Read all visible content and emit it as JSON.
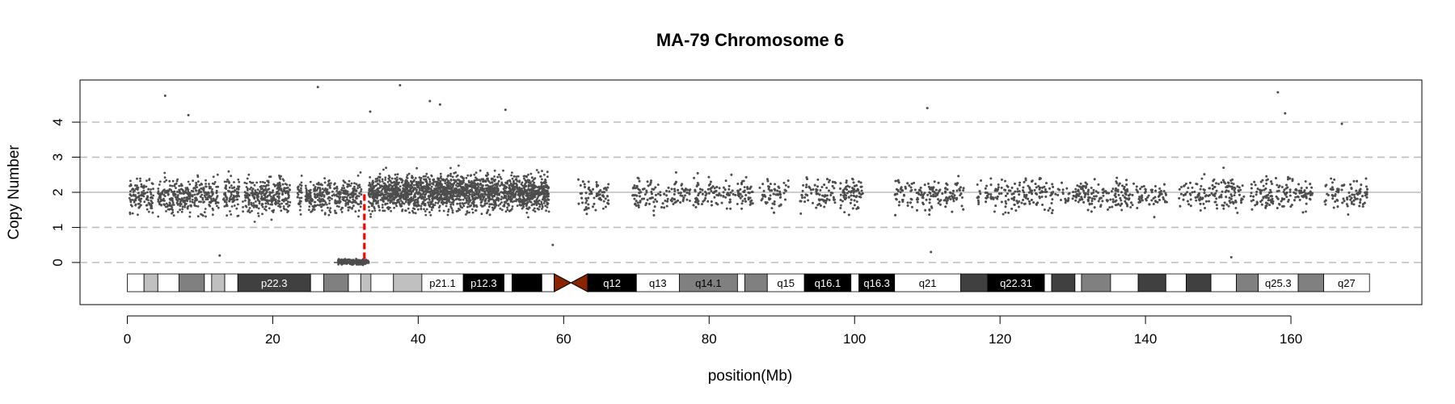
{
  "chart_data": {
    "type": "scatter",
    "title": "MA-79  Chromosome 6",
    "xlabel": "position(Mb)",
    "ylabel": "Copy Number",
    "xlim": [
      -6.5,
      178
    ],
    "ylim": [
      -1.2,
      5.2
    ],
    "x_ticks": [
      0,
      20,
      40,
      60,
      80,
      100,
      120,
      140,
      160
    ],
    "y_ticks": [
      0,
      1,
      2,
      3,
      4
    ],
    "dashed_gridlines_y": [
      0,
      1,
      3,
      4
    ],
    "solid_gridline_y": 2,
    "point_color": "#4d4d4d",
    "marker": {
      "x": 32.6,
      "y_from": 0.1,
      "y_to": 2.0,
      "color": "#ff0000",
      "style": "dashed"
    },
    "segments": [
      {
        "x0": 0.3,
        "x1": 32.2,
        "y": 1.9,
        "spread": 0.55,
        "density": 42
      },
      {
        "x0": 29.0,
        "x1": 33.2,
        "y": 0.02,
        "spread": 0.08,
        "density": 70
      },
      {
        "x0": 33.2,
        "x1": 58.0,
        "y": 2.0,
        "spread": 0.55,
        "density": 80
      },
      {
        "x0": 62.0,
        "x1": 170.5,
        "y": 1.95,
        "spread": 0.5,
        "density": 42
      }
    ],
    "gaps": [
      [
        3.6,
        4.2
      ],
      [
        12.6,
        13.2
      ],
      [
        15.4,
        15.9
      ],
      [
        22.4,
        23.4
      ],
      [
        24.0,
        24.5
      ],
      [
        58.0,
        62.0
      ],
      [
        66.2,
        69.4
      ],
      [
        77.4,
        77.8
      ],
      [
        86.0,
        86.6
      ],
      [
        91.0,
        92.5
      ],
      [
        97.4,
        98.0
      ],
      [
        101.2,
        105.4
      ],
      [
        115.0,
        116.6
      ],
      [
        143.0,
        144.6
      ],
      [
        153.6,
        154.3
      ],
      [
        163.0,
        164.6
      ]
    ],
    "outliers": [
      [
        5.2,
        4.75
      ],
      [
        8.4,
        4.2
      ],
      [
        26.2,
        5.0
      ],
      [
        33.4,
        4.3
      ],
      [
        37.5,
        5.05
      ],
      [
        41.6,
        4.6
      ],
      [
        43.0,
        4.5
      ],
      [
        52.0,
        4.35
      ],
      [
        110.0,
        4.4
      ],
      [
        158.2,
        4.85
      ],
      [
        159.2,
        4.25
      ],
      [
        167.0,
        3.95
      ],
      [
        12.7,
        0.2
      ],
      [
        110.5,
        0.3
      ],
      [
        151.8,
        0.15
      ],
      [
        58.5,
        0.5
      ]
    ],
    "ideogram": {
      "bands": [
        {
          "start": 0.0,
          "end": 2.3,
          "stain": "gneg",
          "label": ""
        },
        {
          "start": 2.3,
          "end": 4.2,
          "stain": "gpos25",
          "label": ""
        },
        {
          "start": 4.2,
          "end": 7.1,
          "stain": "gneg",
          "label": ""
        },
        {
          "start": 7.1,
          "end": 10.6,
          "stain": "gpos50",
          "label": ""
        },
        {
          "start": 10.6,
          "end": 11.6,
          "stain": "gneg",
          "label": ""
        },
        {
          "start": 11.6,
          "end": 13.4,
          "stain": "gpos25",
          "label": ""
        },
        {
          "start": 13.4,
          "end": 15.2,
          "stain": "gneg",
          "label": ""
        },
        {
          "start": 15.2,
          "end": 25.2,
          "stain": "gpos75",
          "label": "p22.3"
        },
        {
          "start": 25.2,
          "end": 27.0,
          "stain": "gneg",
          "label": ""
        },
        {
          "start": 27.0,
          "end": 30.4,
          "stain": "gpos50",
          "label": ""
        },
        {
          "start": 30.4,
          "end": 32.1,
          "stain": "gneg",
          "label": ""
        },
        {
          "start": 32.1,
          "end": 33.5,
          "stain": "gpos25",
          "label": ""
        },
        {
          "start": 33.5,
          "end": 36.6,
          "stain": "gneg",
          "label": ""
        },
        {
          "start": 36.6,
          "end": 40.5,
          "stain": "gpos25",
          "label": ""
        },
        {
          "start": 40.5,
          "end": 46.2,
          "stain": "gneg",
          "label": "p21.1"
        },
        {
          "start": 46.2,
          "end": 51.8,
          "stain": "gpos100",
          "label": "p12.3"
        },
        {
          "start": 51.8,
          "end": 52.9,
          "stain": "gneg",
          "label": ""
        },
        {
          "start": 52.9,
          "end": 57.0,
          "stain": "gpos100",
          "label": ""
        },
        {
          "start": 57.0,
          "end": 58.7,
          "stain": "gneg",
          "label": ""
        },
        {
          "start": 58.7,
          "end": 63.3,
          "stain": "acen",
          "label": ""
        },
        {
          "start": 63.3,
          "end": 70.0,
          "stain": "gpos100",
          "label": "q12"
        },
        {
          "start": 70.0,
          "end": 75.9,
          "stain": "gneg",
          "label": "q13"
        },
        {
          "start": 75.9,
          "end": 83.9,
          "stain": "gpos50",
          "label": "q14.1"
        },
        {
          "start": 83.9,
          "end": 84.9,
          "stain": "gneg",
          "label": ""
        },
        {
          "start": 84.9,
          "end": 88.0,
          "stain": "gpos50",
          "label": ""
        },
        {
          "start": 88.0,
          "end": 93.1,
          "stain": "gneg",
          "label": "q15"
        },
        {
          "start": 93.1,
          "end": 99.5,
          "stain": "gpos100",
          "label": "q16.1"
        },
        {
          "start": 99.5,
          "end": 100.6,
          "stain": "gneg",
          "label": ""
        },
        {
          "start": 100.6,
          "end": 105.5,
          "stain": "gpos100",
          "label": "q16.3"
        },
        {
          "start": 105.5,
          "end": 114.6,
          "stain": "gneg",
          "label": "q21"
        },
        {
          "start": 114.6,
          "end": 118.3,
          "stain": "gpos75",
          "label": ""
        },
        {
          "start": 118.3,
          "end": 126.1,
          "stain": "gpos100",
          "label": "q22.31"
        },
        {
          "start": 126.1,
          "end": 127.1,
          "stain": "gneg",
          "label": ""
        },
        {
          "start": 127.1,
          "end": 130.3,
          "stain": "gpos75",
          "label": ""
        },
        {
          "start": 130.3,
          "end": 131.2,
          "stain": "gneg",
          "label": ""
        },
        {
          "start": 131.2,
          "end": 135.2,
          "stain": "gpos50",
          "label": ""
        },
        {
          "start": 135.2,
          "end": 139.0,
          "stain": "gneg",
          "label": ""
        },
        {
          "start": 139.0,
          "end": 142.8,
          "stain": "gpos75",
          "label": ""
        },
        {
          "start": 142.8,
          "end": 145.6,
          "stain": "gneg",
          "label": ""
        },
        {
          "start": 145.6,
          "end": 149.0,
          "stain": "gpos75",
          "label": ""
        },
        {
          "start": 149.0,
          "end": 152.5,
          "stain": "gneg",
          "label": ""
        },
        {
          "start": 152.5,
          "end": 155.5,
          "stain": "gpos50",
          "label": ""
        },
        {
          "start": 155.5,
          "end": 161.0,
          "stain": "gneg",
          "label": "q25.3"
        },
        {
          "start": 161.0,
          "end": 164.5,
          "stain": "gpos50",
          "label": ""
        },
        {
          "start": 164.5,
          "end": 170.8,
          "stain": "gneg",
          "label": "q27"
        }
      ],
      "stain_colors": {
        "gneg": "#ffffff",
        "gpos25": "#c0c0c0",
        "gpos50": "#808080",
        "gpos75": "#404040",
        "gpos100": "#000000",
        "acen": "#8b2500"
      }
    }
  }
}
